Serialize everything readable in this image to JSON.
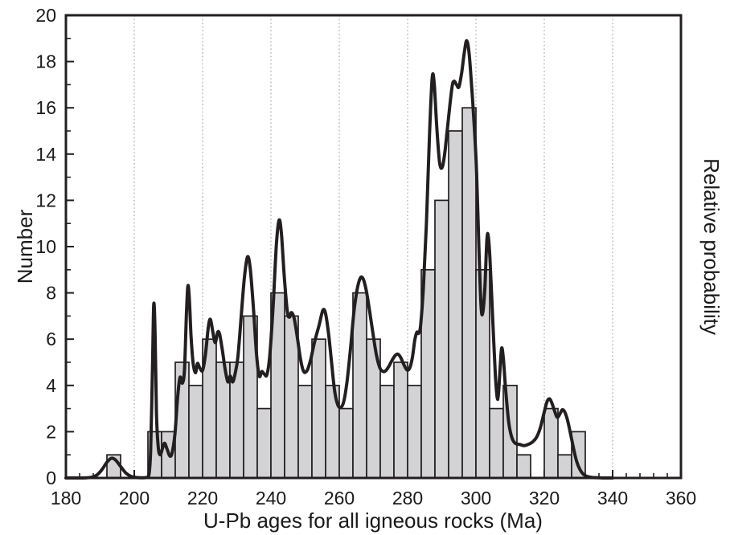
{
  "figure": {
    "background": "#ffffff"
  },
  "chart_data": {
    "type": "bar",
    "subtype": "histogram_with_relative_probability_curve",
    "title": "",
    "xlabel": "U-Pb ages for all igneous rocks (Ma)",
    "ylabel_left": "Number",
    "ylabel_right": "Relative probability",
    "xlim": [
      180,
      360
    ],
    "ylim": [
      0,
      20
    ],
    "x_ticks": [
      180,
      200,
      220,
      240,
      260,
      280,
      300,
      320,
      340,
      360
    ],
    "x_minor_tick_step": 4,
    "y_ticks": [
      0,
      2,
      4,
      6,
      8,
      10,
      12,
      14,
      16,
      18,
      20
    ],
    "y_minor_tick_step": 1,
    "grid": {
      "style": "dotted-vertical",
      "at_x": [
        200,
        220,
        240,
        260,
        280,
        300,
        320,
        340
      ]
    },
    "bin_width": 4,
    "bins_format": [
      "bin_start_Ma",
      "count"
    ],
    "bins": [
      [
        192,
        1
      ],
      [
        204,
        2
      ],
      [
        208,
        2
      ],
      [
        212,
        5
      ],
      [
        216,
        4
      ],
      [
        220,
        6
      ],
      [
        224,
        5
      ],
      [
        228,
        5
      ],
      [
        232,
        7
      ],
      [
        236,
        3
      ],
      [
        240,
        8
      ],
      [
        244,
        7
      ],
      [
        248,
        4
      ],
      [
        252,
        6
      ],
      [
        256,
        4
      ],
      [
        260,
        3
      ],
      [
        264,
        8
      ],
      [
        268,
        6
      ],
      [
        272,
        4
      ],
      [
        276,
        5
      ],
      [
        280,
        4
      ],
      [
        284,
        9
      ],
      [
        288,
        12
      ],
      [
        292,
        15
      ],
      [
        296,
        16
      ],
      [
        300,
        9
      ],
      [
        304,
        3
      ],
      [
        308,
        4
      ],
      [
        312,
        1
      ],
      [
        320,
        3
      ],
      [
        324,
        1
      ],
      [
        328,
        2
      ]
    ],
    "curve": {
      "name": "relative-probability-curve",
      "points_format": [
        "age_Ma",
        "number_scale_value"
      ],
      "points": [
        [
          180,
          0
        ],
        [
          185,
          0
        ],
        [
          187.5,
          0.03
        ],
        [
          189,
          0.12
        ],
        [
          190.5,
          0.35
        ],
        [
          192,
          0.68
        ],
        [
          193.3,
          0.85
        ],
        [
          194.5,
          0.78
        ],
        [
          196,
          0.5
        ],
        [
          197.5,
          0.22
        ],
        [
          199,
          0.07
        ],
        [
          200.5,
          0.02
        ],
        [
          202,
          0.01
        ],
        [
          203.5,
          0.02
        ],
        [
          204.3,
          0.15
        ],
        [
          204.8,
          1.2
        ],
        [
          205.3,
          4.5
        ],
        [
          205.7,
          7.5
        ],
        [
          206.1,
          6.2
        ],
        [
          206.5,
          2.8
        ],
        [
          207,
          1.35
        ],
        [
          207.6,
          1
        ],
        [
          208.3,
          1.3
        ],
        [
          208.9,
          1.5
        ],
        [
          209.6,
          1.25
        ],
        [
          210.4,
          0.95
        ],
        [
          211.1,
          1.1
        ],
        [
          211.9,
          1.9
        ],
        [
          212.7,
          3.5
        ],
        [
          213.4,
          4.35
        ],
        [
          214.1,
          4.1
        ],
        [
          214.7,
          4.7
        ],
        [
          215.3,
          7.2
        ],
        [
          215.7,
          8.3
        ],
        [
          216.1,
          7.8
        ],
        [
          216.6,
          6.2
        ],
        [
          217.2,
          5
        ],
        [
          217.9,
          4.55
        ],
        [
          218.5,
          4.95
        ],
        [
          219.2,
          4.75
        ],
        [
          220,
          4.65
        ],
        [
          220.8,
          5.3
        ],
        [
          221.7,
          6.55
        ],
        [
          222.3,
          6.85
        ],
        [
          223,
          6.3
        ],
        [
          223.7,
          5.85
        ],
        [
          224.4,
          6.3
        ],
        [
          225,
          6.2
        ],
        [
          225.8,
          5.5
        ],
        [
          226.6,
          4.7
        ],
        [
          227.4,
          4.15
        ],
        [
          228.1,
          4.4
        ],
        [
          228.8,
          4.15
        ],
        [
          229.5,
          4.5
        ],
        [
          230.3,
          5.2
        ],
        [
          231.2,
          6.8
        ],
        [
          232.2,
          8.6
        ],
        [
          233.1,
          9.55
        ],
        [
          233.9,
          9.1
        ],
        [
          234.9,
          7.3
        ],
        [
          235.8,
          5.3
        ],
        [
          236.6,
          4.4
        ],
        [
          237.3,
          4.6
        ],
        [
          238,
          4.5
        ],
        [
          238.8,
          4.45
        ],
        [
          239.6,
          5.2
        ],
        [
          240.6,
          7.3
        ],
        [
          241.6,
          10.1
        ],
        [
          242.4,
          11.15
        ],
        [
          243.1,
          10.5
        ],
        [
          243.9,
          8.7
        ],
        [
          244.8,
          7.2
        ],
        [
          245.4,
          6.95
        ],
        [
          246,
          7.15
        ],
        [
          246.8,
          6.9
        ],
        [
          247.7,
          6.1
        ],
        [
          248.7,
          5.1
        ],
        [
          249.6,
          4.6
        ],
        [
          250.6,
          4.65
        ],
        [
          251.6,
          5.1
        ],
        [
          252.8,
          5.9
        ],
        [
          254.1,
          6.6
        ],
        [
          255.2,
          7.25
        ],
        [
          256,
          7.1
        ],
        [
          256.9,
          6.2
        ],
        [
          257.8,
          4.9
        ],
        [
          258.7,
          3.7
        ],
        [
          259.6,
          3.15
        ],
        [
          260.5,
          3.05
        ],
        [
          261.4,
          3.35
        ],
        [
          262.3,
          4.2
        ],
        [
          263.3,
          5.6
        ],
        [
          264.3,
          7.2
        ],
        [
          265.3,
          8.2
        ],
        [
          266.2,
          8.65
        ],
        [
          267,
          8.6
        ],
        [
          267.9,
          8.1
        ],
        [
          268.9,
          7.2
        ],
        [
          269.9,
          6.2
        ],
        [
          270.9,
          5.3
        ],
        [
          271.9,
          4.75
        ],
        [
          272.9,
          4.6
        ],
        [
          273.7,
          4.65
        ],
        [
          274.6,
          4.85
        ],
        [
          275.5,
          5.1
        ],
        [
          276.4,
          5.3
        ],
        [
          277.2,
          5.35
        ],
        [
          278,
          5.2
        ],
        [
          278.9,
          4.9
        ],
        [
          279.8,
          4.67
        ],
        [
          280.6,
          4.75
        ],
        [
          281.4,
          5.2
        ],
        [
          282.1,
          5.95
        ],
        [
          282.7,
          6.3
        ],
        [
          283.2,
          6.25
        ],
        [
          283.8,
          6.6
        ],
        [
          284.6,
          8.2
        ],
        [
          285.5,
          11
        ],
        [
          286.4,
          14.8
        ],
        [
          287.2,
          17.3
        ],
        [
          287.8,
          17
        ],
        [
          288.6,
          15
        ],
        [
          289.4,
          13.6
        ],
        [
          290.2,
          13.45
        ],
        [
          291,
          14.2
        ],
        [
          292,
          15.6
        ],
        [
          293,
          16.9
        ],
        [
          293.6,
          17.15
        ],
        [
          294.3,
          17
        ],
        [
          295,
          16.9
        ],
        [
          295.8,
          17.5
        ],
        [
          296.6,
          18.4
        ],
        [
          297.3,
          18.9
        ],
        [
          298,
          18.35
        ],
        [
          298.8,
          16.8
        ],
        [
          299.5,
          15.2
        ],
        [
          300.2,
          13.2
        ],
        [
          300.9,
          9.8
        ],
        [
          301.5,
          7.4
        ],
        [
          302,
          7.15
        ],
        [
          302.6,
          8.2
        ],
        [
          303.2,
          10.3
        ],
        [
          303.6,
          10.45
        ],
        [
          304.1,
          9.5
        ],
        [
          304.9,
          6.9
        ],
        [
          305.7,
          4.4
        ],
        [
          306.4,
          3.4
        ],
        [
          307,
          4.6
        ],
        [
          307.5,
          5.6
        ],
        [
          308,
          5.2
        ],
        [
          308.7,
          3.8
        ],
        [
          309.6,
          2.4
        ],
        [
          310.5,
          1.75
        ],
        [
          311.5,
          1.5
        ],
        [
          312.8,
          1.45
        ],
        [
          314,
          1.4
        ],
        [
          315.3,
          1.45
        ],
        [
          316.5,
          1.55
        ],
        [
          317.7,
          1.75
        ],
        [
          318.8,
          2.15
        ],
        [
          319.9,
          2.8
        ],
        [
          320.8,
          3.3
        ],
        [
          321.5,
          3.42
        ],
        [
          322.2,
          3.25
        ],
        [
          323,
          2.9
        ],
        [
          323.8,
          2.62
        ],
        [
          324.6,
          2.78
        ],
        [
          325.3,
          2.95
        ],
        [
          326,
          2.85
        ],
        [
          326.8,
          2.5
        ],
        [
          327.7,
          1.9
        ],
        [
          328.6,
          1.25
        ],
        [
          329.5,
          0.7
        ],
        [
          330.5,
          0.35
        ],
        [
          331.5,
          0.15
        ],
        [
          332.5,
          0.07
        ],
        [
          334,
          0.02
        ],
        [
          336,
          0.01
        ],
        [
          338,
          0
        ],
        [
          340,
          0
        ]
      ]
    },
    "colors": {
      "bar_fill": "#d3d3d5",
      "bar_stroke": "#231f20",
      "curve": "#231f20",
      "grid": "#a8a8a8",
      "axis": "#231f20",
      "text": "#1a1a1a"
    }
  }
}
